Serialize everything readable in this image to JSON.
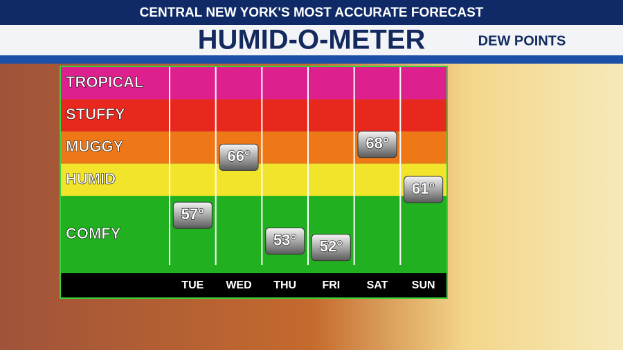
{
  "header": {
    "tagline": "CENTRAL NEW YORK'S MOST ACCURATE FORECAST",
    "title": "HUMID-O-METER",
    "subtitle": "DEW POINTS"
  },
  "chart_data": {
    "type": "marker",
    "categories": [
      "TUE",
      "WED",
      "THU",
      "FRI",
      "SAT",
      "SUN"
    ],
    "values": [
      57,
      66,
      53,
      52,
      68,
      61
    ],
    "value_labels": [
      "57°",
      "66°",
      "53°",
      "52°",
      "68°",
      "61°"
    ],
    "bands": [
      {
        "name": "TROPICAL",
        "color": "#de1f8e",
        "from": 75,
        "to": 80
      },
      {
        "name": "STUFFY",
        "color": "#e8271d",
        "from": 70,
        "to": 75
      },
      {
        "name": "MUGGY",
        "color": "#ee7818",
        "from": 65,
        "to": 70
      },
      {
        "name": "HUMID",
        "color": "#f2e42b",
        "from": 60,
        "to": 65
      },
      {
        "name": "COMFY",
        "color": "#20b020",
        "from": 48,
        "to": 60
      }
    ],
    "ylim": [
      48,
      80
    ]
  }
}
